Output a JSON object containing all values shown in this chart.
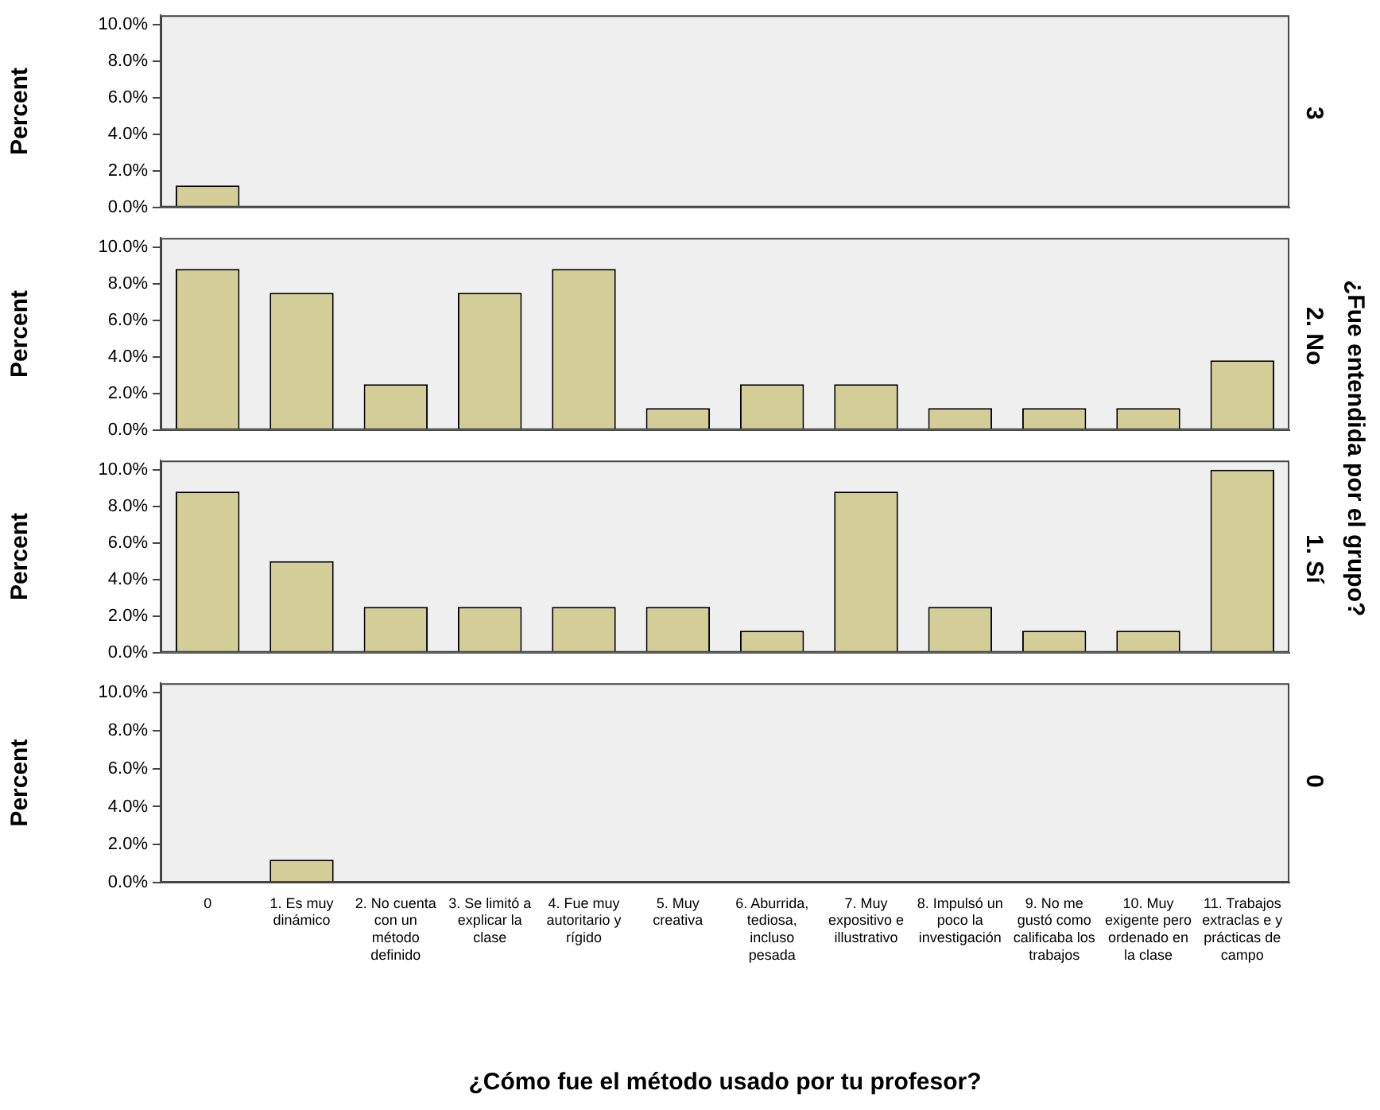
{
  "chart_data": [
    {
      "type": "bar",
      "y2label": "3",
      "ylabel": "Percent",
      "annotations": [
        "¿Fue entendida por el grupo?"
      ],
      "categories": [
        null,
        null,
        null,
        null,
        null,
        null,
        null,
        null,
        null,
        null,
        null,
        null
      ],
      "values": [
        1.2,
        0,
        0,
        0,
        0,
        0,
        0,
        0,
        0,
        0,
        0,
        0
      ],
      "color": "#d3ce97",
      "ylim": [
        0,
        10.5
      ],
      "yticks": [
        {
          "value": 0,
          "label": "0.0%"
        },
        {
          "value": 2,
          "label": "2.0%"
        },
        {
          "value": 4,
          "label": "4.0%"
        },
        {
          "value": 6,
          "label": "6.0%"
        },
        {
          "value": 8,
          "label": "8.0%"
        },
        {
          "value": 10,
          "label": "10.0%"
        }
      ],
      "tick_labels": "y"
    },
    {
      "type": "bar",
      "y2label": "2. No",
      "ylabel": "Percent",
      "categories": [
        null,
        null,
        null,
        null,
        null,
        null,
        null,
        null,
        null,
        null,
        null,
        null
      ],
      "values": [
        8.8,
        7.5,
        2.5,
        7.5,
        8.8,
        1.2,
        2.5,
        2.5,
        1.2,
        1.2,
        1.2,
        3.8
      ],
      "color": "#d3ce97",
      "ylim": [
        0,
        10.5
      ],
      "yticks": [
        {
          "value": 0,
          "label": "0.0%"
        },
        {
          "value": 2,
          "label": "2.0%"
        },
        {
          "value": 4,
          "label": "4.0%"
        },
        {
          "value": 6,
          "label": "6.0%"
        },
        {
          "value": 8,
          "label": "8.0%"
        },
        {
          "value": 10,
          "label": "10.0%"
        }
      ],
      "tick_labels": "y"
    },
    {
      "type": "bar",
      "y2label": "1. Sí",
      "ylabel": "Percent",
      "categories": [
        null,
        null,
        null,
        null,
        null,
        null,
        null,
        null,
        null,
        null,
        null,
        null
      ],
      "values": [
        8.8,
        5,
        2.5,
        2.5,
        2.5,
        2.5,
        1.2,
        8.8,
        2.5,
        1.2,
        1.2,
        10
      ],
      "color": "#d3ce97",
      "ylim": [
        0,
        10.5
      ],
      "yticks": [
        {
          "value": 0,
          "label": "0.0%"
        },
        {
          "value": 2,
          "label": "2.0%"
        },
        {
          "value": 4,
          "label": "4.0%"
        },
        {
          "value": 6,
          "label": "6.0%"
        },
        {
          "value": 8,
          "label": "8.0%"
        },
        {
          "value": 10,
          "label": "10.0%"
        }
      ],
      "tick_labels": "y"
    },
    {
      "type": "bar",
      "y2label": "0",
      "ylabel": "Percent",
      "xlabel": "¿Cómo fue el método usado por tu profesor?",
      "categories": [
        "0",
        "1. Es muy dinámico",
        "2. No cuenta con un método definido",
        "3. Se limitó a explicar la clase",
        "4. Fue muy autoritario y rígido",
        "5. Muy creativa",
        "6. Aburrida, tediosa, incluso pesada",
        "7. Muy expositivo e illustrativo",
        "8. Impulsó un poco la investigación",
        "9. No me gustó como calificaba los trabajos",
        "10. Muy exigente pero ordenado en la clase",
        "11. Trabajos extraclas e y prácticas de campo"
      ],
      "values": [
        0,
        1.2,
        0,
        0,
        0,
        0,
        0,
        0,
        0,
        0,
        0,
        0
      ],
      "color": "#d3ce97",
      "ylim": [
        0,
        10.5
      ],
      "yticks": [
        {
          "value": 0,
          "label": "0.0%"
        },
        {
          "value": 2,
          "label": "2.0%"
        },
        {
          "value": 4,
          "label": "4.0%"
        },
        {
          "value": 6,
          "label": "6.0%"
        },
        {
          "value": 8,
          "label": "8.0%"
        },
        {
          "value": 10,
          "label": "10.0%"
        }
      ]
    }
  ]
}
